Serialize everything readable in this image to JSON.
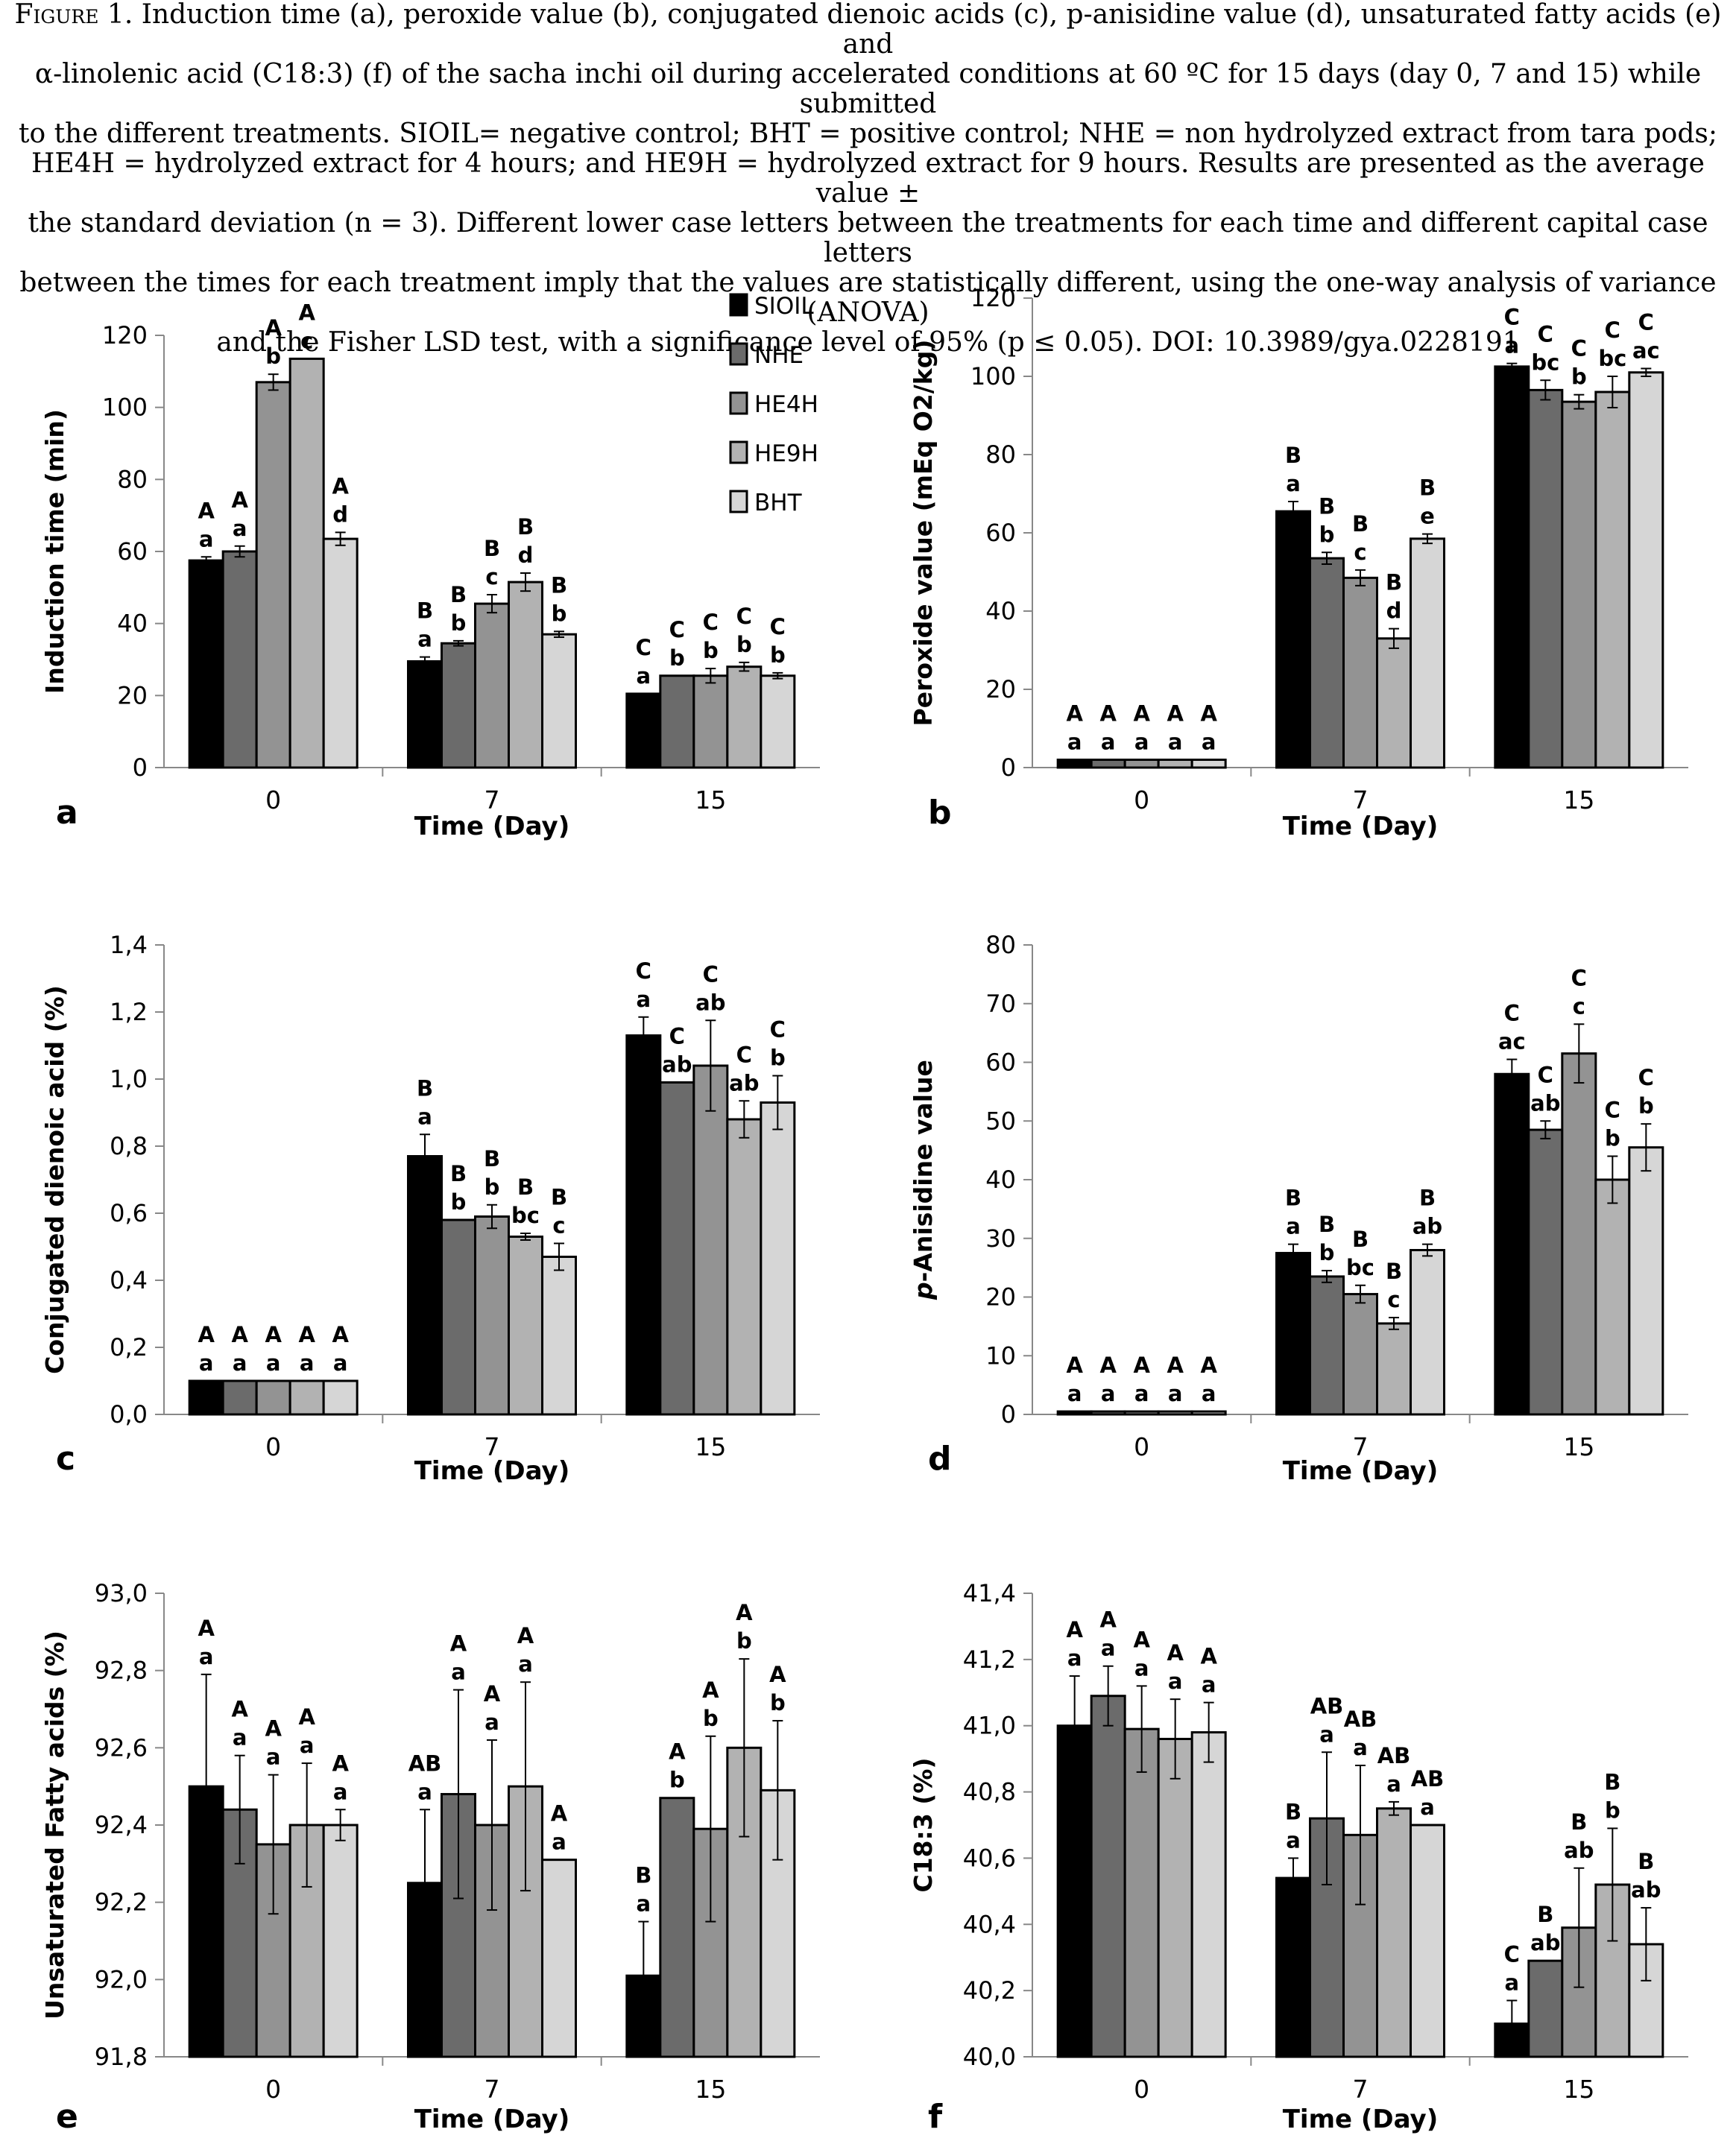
{
  "caption": {
    "figure_label": "Figure 1.",
    "lines": [
      "Induction time (a), peroxide value (b), conjugated dienoic acids (c), p-anisidine value (d), unsaturated fatty acids (e) and",
      "α-linolenic acid (C18:3) (f) of the sacha inchi oil during accelerated conditions at 60 ºC for 15 days (day 0, 7 and 15) while submitted",
      "to the different treatments. SIOIL= negative control; BHT = positive control; NHE = non hydrolyzed extract from tara pods;",
      "HE4H = hydrolyzed extract for 4 hours; and HE9H = hydrolyzed extract for 9 hours. Results are presented as the average value ±",
      "the standard deviation (n = 3). Different lower case letters between the treatments for each time and different capital case letters",
      "between the times for each treatment imply that the values are statistically different, using the one-way analysis of variance (ANOVA)",
      "and the Fisher LSD test, with a significance level of 95% (p ≤ 0.05). DOI: 10.3989/gya.0228191"
    ]
  },
  "colors": {
    "SIOIL": "#000000",
    "NHE": "#6b6b6b",
    "HE4H": "#939393",
    "HE9H": "#b2b2b2",
    "BHT": "#d6d6d6"
  },
  "chart_data": [
    {
      "panel": "a",
      "type": "bar",
      "xlabel": "Time (Day)",
      "ylabel": "Induction time (min)",
      "ylim": [
        0,
        120
      ],
      "ytick_step": 20,
      "decimals": 0,
      "decimal_comma": false,
      "categories": [
        "0",
        "7",
        "15"
      ],
      "legend": true,
      "legend_position": "top-right",
      "series": [
        {
          "name": "SIOIL",
          "values": [
            57.5,
            29.5,
            20.5
          ],
          "errors": [
            1.0,
            1.2,
            0
          ],
          "labels": [
            [
              "A",
              "a"
            ],
            [
              "B",
              "a"
            ],
            [
              "C",
              "a"
            ]
          ]
        },
        {
          "name": "NHE",
          "values": [
            60,
            34.5,
            25.5
          ],
          "errors": [
            1.5,
            0.7,
            0
          ],
          "labels": [
            [
              "A",
              "a"
            ],
            [
              "B",
              "b"
            ],
            [
              "C",
              "b"
            ]
          ]
        },
        {
          "name": "HE4H",
          "values": [
            107,
            45.5,
            25.5
          ],
          "errors": [
            2.2,
            2.5,
            2.0
          ],
          "labels": [
            [
              "A",
              "b"
            ],
            [
              "B",
              "c"
            ],
            [
              "C",
              "b"
            ]
          ]
        },
        {
          "name": "HE9H",
          "values": [
            113.5,
            51.5,
            28
          ],
          "errors": [
            0,
            2.5,
            1.2
          ],
          "labels": [
            [
              "A",
              "c"
            ],
            [
              "B",
              "d"
            ],
            [
              "C",
              "b"
            ]
          ]
        },
        {
          "name": "BHT",
          "values": [
            63.5,
            37,
            25.5
          ],
          "errors": [
            1.8,
            0.8,
            0.8
          ],
          "labels": [
            [
              "A",
              "d"
            ],
            [
              "B",
              "b"
            ],
            [
              "C",
              "b"
            ]
          ]
        }
      ]
    },
    {
      "panel": "b",
      "type": "bar",
      "xlabel": "Time (Day)",
      "ylabel": "Peroxide value (mEq O2/kg)",
      "ylim": [
        0,
        120
      ],
      "ytick_step": 20,
      "decimals": 0,
      "decimal_comma": false,
      "categories": [
        "0",
        "7",
        "15"
      ],
      "legend": false,
      "series": [
        {
          "name": "SIOIL",
          "values": [
            2,
            65.5,
            102.5
          ],
          "errors": [
            0,
            2.5,
            0.8
          ],
          "labels": [
            [
              "A",
              "a"
            ],
            [
              "B",
              "a"
            ],
            [
              "C",
              "a"
            ]
          ]
        },
        {
          "name": "NHE",
          "values": [
            2,
            53.5,
            96.5
          ],
          "errors": [
            0,
            1.5,
            2.5
          ],
          "labels": [
            [
              "A",
              "a"
            ],
            [
              "B",
              "b"
            ],
            [
              "C",
              "bc"
            ]
          ]
        },
        {
          "name": "HE4H",
          "values": [
            2,
            48.5,
            93.5
          ],
          "errors": [
            0,
            2.0,
            1.8
          ],
          "labels": [
            [
              "A",
              "a"
            ],
            [
              "B",
              "c"
            ],
            [
              "C",
              "b"
            ]
          ]
        },
        {
          "name": "HE9H",
          "values": [
            2,
            33,
            96
          ],
          "errors": [
            0,
            2.5,
            4.0
          ],
          "labels": [
            [
              "A",
              "a"
            ],
            [
              "B",
              "d"
            ],
            [
              "C",
              "bc"
            ]
          ]
        },
        {
          "name": "BHT",
          "values": [
            2,
            58.5,
            101
          ],
          "errors": [
            0,
            1.2,
            1.0
          ],
          "labels": [
            [
              "A",
              "a"
            ],
            [
              "B",
              "e"
            ],
            [
              "C",
              "ac"
            ]
          ]
        }
      ]
    },
    {
      "panel": "c",
      "type": "bar",
      "xlabel": "Time (Day)",
      "ylabel": "Conjugated dienoic acid (%)",
      "ylim": [
        0,
        1.4
      ],
      "ytick_step": 0.2,
      "decimals": 1,
      "decimal_comma": true,
      "categories": [
        "0",
        "7",
        "15"
      ],
      "legend": false,
      "series": [
        {
          "name": "SIOIL",
          "values": [
            0.1,
            0.77,
            1.13
          ],
          "errors": [
            0,
            0.065,
            0.055
          ],
          "labels": [
            [
              "A",
              "a"
            ],
            [
              "B",
              "a"
            ],
            [
              "C",
              "a"
            ]
          ]
        },
        {
          "name": "NHE",
          "values": [
            0.1,
            0.58,
            0.99
          ],
          "errors": [
            0,
            0,
            0
          ],
          "labels": [
            [
              "A",
              "a"
            ],
            [
              "B",
              "b"
            ],
            [
              "C",
              "ab"
            ]
          ]
        },
        {
          "name": "HE4H",
          "values": [
            0.1,
            0.59,
            1.04
          ],
          "errors": [
            0,
            0.035,
            0.135
          ],
          "labels": [
            [
              "A",
              "a"
            ],
            [
              "B",
              "b"
            ],
            [
              "C",
              "ab"
            ]
          ]
        },
        {
          "name": "HE9H",
          "values": [
            0.1,
            0.53,
            0.88
          ],
          "errors": [
            0,
            0.01,
            0.055
          ],
          "labels": [
            [
              "A",
              "a"
            ],
            [
              "B",
              "bc"
            ],
            [
              "C",
              "ab"
            ]
          ]
        },
        {
          "name": "BHT",
          "values": [
            0.1,
            0.47,
            0.93
          ],
          "errors": [
            0,
            0.04,
            0.08
          ],
          "labels": [
            [
              "A",
              "a"
            ],
            [
              "B",
              "c"
            ],
            [
              "C",
              "b"
            ]
          ]
        }
      ]
    },
    {
      "panel": "d",
      "type": "bar",
      "xlabel": "Time (Day)",
      "ylabel": "p-Anisidine value",
      "ylabel_italic_prefix": "p",
      "ylim": [
        0,
        80
      ],
      "ytick_step": 10,
      "decimals": 0,
      "decimal_comma": false,
      "categories": [
        "0",
        "7",
        "15"
      ],
      "legend": false,
      "series": [
        {
          "name": "SIOIL",
          "values": [
            0.5,
            27.5,
            58
          ],
          "errors": [
            0,
            1.5,
            2.5
          ],
          "labels": [
            [
              "A",
              "a"
            ],
            [
              "B",
              "a"
            ],
            [
              "C",
              "ac"
            ]
          ]
        },
        {
          "name": "NHE",
          "values": [
            0.5,
            23.5,
            48.5
          ],
          "errors": [
            0,
            1.0,
            1.5
          ],
          "labels": [
            [
              "A",
              "a"
            ],
            [
              "B",
              "b"
            ],
            [
              "C",
              "ab"
            ]
          ]
        },
        {
          "name": "HE4H",
          "values": [
            0.5,
            20.5,
            61.5
          ],
          "errors": [
            0,
            1.5,
            5.0
          ],
          "labels": [
            [
              "A",
              "a"
            ],
            [
              "B",
              "bc"
            ],
            [
              "C",
              "c"
            ]
          ]
        },
        {
          "name": "HE9H",
          "values": [
            0.5,
            15.5,
            40
          ],
          "errors": [
            0,
            1.0,
            4.0
          ],
          "labels": [
            [
              "A",
              "a"
            ],
            [
              "B",
              "c"
            ],
            [
              "C",
              "b"
            ]
          ]
        },
        {
          "name": "BHT",
          "values": [
            0.5,
            28,
            45.5
          ],
          "errors": [
            0,
            1.0,
            4.0
          ],
          "labels": [
            [
              "A",
              "a"
            ],
            [
              "B",
              "ab"
            ],
            [
              "C",
              "b"
            ]
          ]
        }
      ]
    },
    {
      "panel": "e",
      "type": "bar",
      "xlabel": "Time (Day)",
      "ylabel": "Unsaturated Fatty acids (%)",
      "ylim": [
        91.8,
        93.0
      ],
      "ytick_step": 0.2,
      "decimals": 1,
      "decimal_comma": true,
      "categories": [
        "0",
        "7",
        "15"
      ],
      "legend": false,
      "series": [
        {
          "name": "SIOIL",
          "values": [
            92.5,
            92.25,
            92.01
          ],
          "errors": [
            0.29,
            0.19,
            0.14
          ],
          "labels": [
            [
              "A",
              "a"
            ],
            [
              "AB",
              "a"
            ],
            [
              "B",
              "a"
            ]
          ]
        },
        {
          "name": "NHE",
          "values": [
            92.44,
            92.48,
            92.47
          ],
          "errors": [
            0.14,
            0.27,
            0
          ],
          "labels": [
            [
              "A",
              "a"
            ],
            [
              "A",
              "a"
            ],
            [
              "A",
              "b"
            ]
          ]
        },
        {
          "name": "HE4H",
          "values": [
            92.35,
            92.4,
            92.39
          ],
          "errors": [
            0.18,
            0.22,
            0.24
          ],
          "labels": [
            [
              "A",
              "a"
            ],
            [
              "A",
              "a"
            ],
            [
              "A",
              "b"
            ]
          ]
        },
        {
          "name": "HE9H",
          "values": [
            92.4,
            92.5,
            92.6
          ],
          "errors": [
            0.16,
            0.27,
            0.23
          ],
          "labels": [
            [
              "A",
              "a"
            ],
            [
              "A",
              "a"
            ],
            [
              "A",
              "b"
            ]
          ]
        },
        {
          "name": "BHT",
          "values": [
            92.4,
            92.31,
            92.49
          ],
          "errors": [
            0.04,
            0,
            0.18
          ],
          "labels": [
            [
              "A",
              "a"
            ],
            [
              "A",
              "a"
            ],
            [
              "A",
              "b"
            ]
          ]
        }
      ]
    },
    {
      "panel": "f",
      "type": "bar",
      "xlabel": "Time (Day)",
      "ylabel": "C18:3 (%)",
      "ylim": [
        40.0,
        41.4
      ],
      "ytick_step": 0.2,
      "decimals": 1,
      "decimal_comma": true,
      "categories": [
        "0",
        "7",
        "15"
      ],
      "legend": false,
      "series": [
        {
          "name": "SIOIL",
          "values": [
            41.0,
            40.54,
            40.1
          ],
          "errors": [
            0.15,
            0.06,
            0.07
          ],
          "labels": [
            [
              "A",
              "a"
            ],
            [
              "B",
              "a"
            ],
            [
              "C",
              "a"
            ]
          ]
        },
        {
          "name": "NHE",
          "values": [
            41.09,
            40.72,
            40.29
          ],
          "errors": [
            0.09,
            0.2,
            0
          ],
          "labels": [
            [
              "A",
              "a"
            ],
            [
              "AB",
              "a"
            ],
            [
              "B",
              "ab"
            ]
          ]
        },
        {
          "name": "HE4H",
          "values": [
            40.99,
            40.67,
            40.39
          ],
          "errors": [
            0.13,
            0.21,
            0.18
          ],
          "labels": [
            [
              "A",
              "a"
            ],
            [
              "AB",
              "a"
            ],
            [
              "B",
              "ab"
            ]
          ]
        },
        {
          "name": "HE9H",
          "values": [
            40.96,
            40.75,
            40.52
          ],
          "errors": [
            0.12,
            0.02,
            0.17
          ],
          "labels": [
            [
              "A",
              "a"
            ],
            [
              "AB",
              "a"
            ],
            [
              "B",
              "b"
            ]
          ]
        },
        {
          "name": "BHT",
          "values": [
            40.98,
            40.7,
            40.34
          ],
          "errors": [
            0.09,
            0,
            0.11
          ],
          "labels": [
            [
              "A",
              "a"
            ],
            [
              "AB",
              "a"
            ],
            [
              "B",
              "ab"
            ]
          ]
        }
      ]
    }
  ]
}
